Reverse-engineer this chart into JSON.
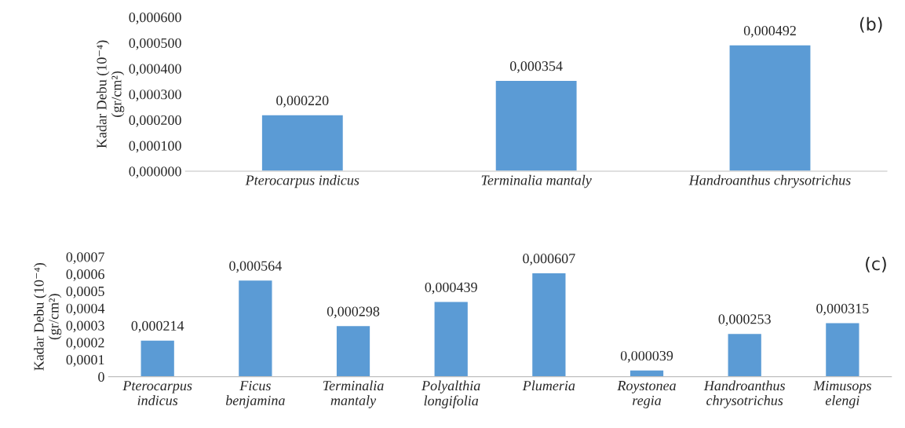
{
  "chart_data": [
    {
      "type": "bar",
      "ylabel": "Kadar Debu (10⁻⁴)\n(gr/cm²)",
      "categories": [
        "Pterocarpus indicus",
        "Terminalia mantaly",
        "Handroanthus chrysotrichus"
      ],
      "values": [
        0.00022,
        0.000354,
        0.000492
      ],
      "value_labels": [
        "0,000220",
        "0,000354",
        "0,000492"
      ],
      "color": "#5b9bd5",
      "ylim": [
        0,
        0.0006
      ],
      "yticks": [
        {
          "value": 0,
          "label": "0,000000"
        },
        {
          "value": 0.0001,
          "label": "0,000100"
        },
        {
          "value": 0.0002,
          "label": "0,000200"
        },
        {
          "value": 0.0003,
          "label": "0,000300"
        },
        {
          "value": 0.0004,
          "label": "0,000400"
        },
        {
          "value": 0.0005,
          "label": "0,000500"
        },
        {
          "value": 0.0006,
          "label": "0,000600"
        }
      ],
      "grid": false,
      "annotations": [
        "(b)"
      ]
    },
    {
      "type": "bar",
      "ylabel": "Kadar Debu (10⁻⁴)\n(gr/cm²)",
      "categories": [
        "Pterocarpus\nindicus",
        "Ficus\nbenjamina",
        "Terminalia\nmantaly",
        "Polyalthia\nlongifolia",
        "Plumeria",
        "Roystonea\nregia",
        "Handroanthus\nchrysotrichus",
        "Mimusops\nelengi"
      ],
      "values": [
        0.000214,
        0.000564,
        0.000298,
        0.000439,
        0.000607,
        3.9e-05,
        0.000253,
        0.000315
      ],
      "value_labels": [
        "0,000214",
        "0,000564",
        "0,000298",
        "0,000439",
        "0,000607",
        "0,000039",
        "0,000253",
        "0,000315"
      ],
      "color": "#5b9bd5",
      "ylim": [
        0,
        0.0007
      ],
      "yticks": [
        0,
        {
          "value": 0.0001,
          "label": "0,0001"
        },
        {
          "value": 0.0002,
          "label": "0,0002"
        },
        {
          "value": 0.0003,
          "label": "0,0003"
        },
        {
          "value": 0.0004,
          "label": "0,0004"
        },
        {
          "value": 0.0005,
          "label": "0,0005"
        },
        {
          "value": 0.0006,
          "label": "0,0006"
        },
        {
          "value": 0.0007,
          "label": "0,0007"
        }
      ],
      "grid": false,
      "annotations": [
        "(c)"
      ]
    }
  ]
}
